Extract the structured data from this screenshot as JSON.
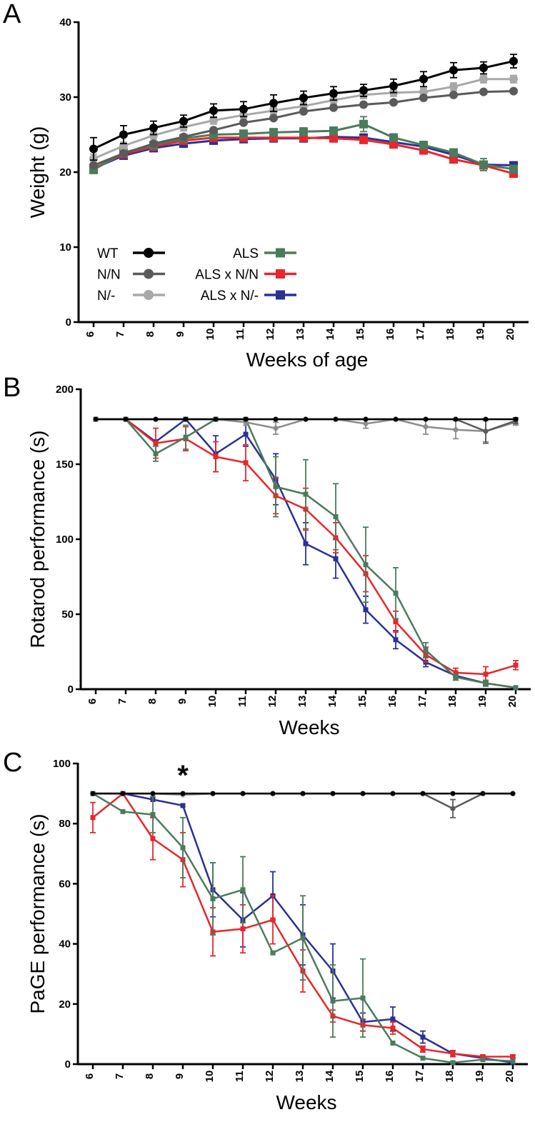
{
  "chart_data": [
    {
      "type": "line",
      "panel": "A",
      "ylabel": "Weight (g)",
      "xlabel": "Weeks of age",
      "x": [
        6,
        7,
        8,
        9,
        10,
        11,
        12,
        13,
        14,
        15,
        16,
        17,
        18,
        19,
        20
      ],
      "xlim": [
        5.5,
        20.5
      ],
      "ylim": [
        0,
        40
      ],
      "yticks": [
        0,
        10,
        20,
        30,
        40
      ],
      "legend": "lower left",
      "series": [
        {
          "name": "WT",
          "color": "#000000",
          "marker": "circle",
          "values": [
            23.1,
            25.0,
            25.9,
            26.8,
            28.2,
            28.4,
            29.2,
            29.9,
            30.5,
            30.9,
            31.5,
            32.4,
            33.6,
            33.9,
            34.8
          ],
          "errors": [
            1.5,
            1.2,
            0.9,
            0.8,
            0.9,
            1.0,
            1.1,
            0.9,
            0.9,
            0.8,
            0.9,
            1.0,
            1.0,
            0.8,
            0.9
          ]
        },
        {
          "name": "N/N",
          "color": "#5a5a5a",
          "marker": "circle",
          "values": [
            20.9,
            22.5,
            23.8,
            24.7,
            25.6,
            26.6,
            27.2,
            28.1,
            28.6,
            29.0,
            29.3,
            29.9,
            30.3,
            30.7,
            30.8
          ]
        },
        {
          "name": "N/-",
          "color": "#a8a8a8",
          "marker": "circle",
          "values": [
            21.8,
            23.5,
            24.9,
            26.0,
            26.9,
            27.6,
            28.2,
            28.8,
            29.6,
            30.3,
            30.6,
            30.7,
            31.4,
            32.4,
            32.4
          ],
          "errors": [
            0.6,
            0.5,
            0.5,
            0.5,
            0.5,
            0.5,
            0.5,
            0.5,
            0.5,
            0.5,
            0.5,
            0.5,
            0.5,
            0.5,
            0.5
          ]
        },
        {
          "name": "ALS",
          "color": "#4b7b5c",
          "marker": "square",
          "values": [
            20.3,
            22.6,
            23.6,
            24.5,
            25.0,
            25.1,
            25.3,
            25.4,
            25.5,
            26.4,
            24.6,
            23.6,
            22.6,
            21.0,
            20.4
          ],
          "errors": [
            0.4,
            0.4,
            0.4,
            0.4,
            0.5,
            0.5,
            0.5,
            0.5,
            0.5,
            1.0,
            0.5,
            0.5,
            0.5,
            0.8,
            0.5
          ]
        },
        {
          "name": "ALS x N/N",
          "color": "#e8262b",
          "marker": "square",
          "values": [
            20.5,
            22.4,
            23.4,
            24.2,
            24.6,
            24.6,
            24.6,
            24.6,
            24.5,
            24.3,
            23.7,
            22.9,
            21.7,
            20.9,
            19.8
          ]
        },
        {
          "name": "ALS x N/-",
          "color": "#2b3192",
          "marker": "square",
          "values": [
            20.5,
            22.2,
            23.2,
            23.8,
            24.2,
            24.4,
            24.5,
            24.5,
            24.7,
            24.6,
            24.0,
            23.4,
            22.3,
            21.0,
            20.9
          ]
        }
      ]
    },
    {
      "type": "line",
      "panel": "B",
      "ylabel": "Rotarod performance (s)",
      "xlabel": "Weeks",
      "x": [
        6,
        7,
        8,
        9,
        10,
        11,
        12,
        13,
        14,
        15,
        16,
        17,
        18,
        19,
        20
      ],
      "xlim": [
        5.5,
        20.5
      ],
      "ylim": [
        0,
        200
      ],
      "yticks": [
        0,
        50,
        100,
        150,
        200
      ],
      "series": [
        {
          "color": "#000000",
          "marker": "circle",
          "values": [
            180,
            180,
            180,
            180,
            180,
            180,
            180,
            180,
            180,
            180,
            180,
            180,
            180,
            180,
            180
          ]
        },
        {
          "color": "#5a5a5a",
          "marker": "circle",
          "values": [
            180,
            180,
            180,
            180,
            180,
            180,
            180,
            180,
            180,
            180,
            180,
            180,
            180,
            172,
            179
          ],
          "errors": [
            0,
            0,
            0,
            0,
            0,
            0,
            0,
            0,
            0,
            0,
            0,
            0,
            0,
            8,
            2
          ]
        },
        {
          "color": "#8c8c8c",
          "marker": "circle",
          "values": [
            180,
            180,
            180,
            180,
            180,
            178,
            174,
            180,
            180,
            177,
            180,
            175,
            173,
            172,
            178
          ],
          "errors": [
            0,
            0,
            0,
            0,
            0,
            2,
            4,
            0,
            0,
            3,
            0,
            5,
            6,
            7,
            2
          ]
        },
        {
          "color": "#4b7b5c",
          "marker": "square",
          "values": [
            180,
            180,
            157,
            168,
            180,
            180,
            135,
            130,
            115,
            83,
            64,
            26,
            8,
            4,
            1
          ],
          "errors": [
            0,
            0,
            5,
            8,
            0,
            0,
            20,
            23,
            22,
            25,
            17,
            5,
            2,
            2,
            0
          ]
        },
        {
          "color": "#e8262b",
          "marker": "square",
          "values": [
            180,
            180,
            164,
            167,
            155,
            151,
            129,
            120,
            101,
            77,
            45,
            23,
            11,
            10,
            16
          ],
          "errors": [
            0,
            0,
            10,
            8,
            10,
            12,
            12,
            14,
            10,
            12,
            7,
            5,
            3,
            5,
            3
          ]
        },
        {
          "color": "#2b3192",
          "marker": "square",
          "values": [
            180,
            180,
            165,
            180,
            157,
            170,
            140,
            97,
            87,
            53,
            33,
            18,
            9,
            4,
            1
          ],
          "errors": [
            0,
            0,
            0,
            0,
            12,
            8,
            17,
            14,
            13,
            9,
            6,
            3,
            1,
            1,
            0
          ]
        }
      ]
    },
    {
      "type": "line",
      "panel": "C",
      "ylabel": "PaGE performance (s)",
      "xlabel": "Weeks",
      "x": [
        6,
        7,
        8,
        9,
        10,
        11,
        12,
        13,
        14,
        15,
        16,
        17,
        18,
        19,
        20
      ],
      "xlim": [
        5.5,
        20.5
      ],
      "ylim": [
        0,
        100
      ],
      "yticks": [
        0,
        20,
        40,
        60,
        80,
        100
      ],
      "annotations": [
        {
          "text": "*",
          "x": 9
        }
      ],
      "series": [
        {
          "color": "#000000",
          "marker": "circle",
          "values": [
            90,
            90,
            90,
            90,
            90,
            90,
            90,
            90,
            90,
            90,
            90,
            90,
            90,
            90,
            90
          ]
        },
        {
          "color": "#5a5a5a",
          "marker": "circle",
          "values": [
            90,
            90,
            90,
            90,
            90,
            90,
            90,
            90,
            90,
            90,
            90,
            90,
            85,
            90,
            90
          ],
          "errors": [
            0,
            0,
            0,
            0,
            0,
            0,
            0,
            0,
            0,
            0,
            0,
            0,
            3,
            0,
            0
          ]
        },
        {
          "color": "#a8a8a8",
          "marker": "circle",
          "values": [
            90,
            90,
            90,
            89.5,
            90,
            90,
            90,
            90,
            90,
            90,
            90,
            90,
            90,
            90,
            90
          ]
        },
        {
          "color": "#4b7b5c",
          "marker": "square",
          "values": [
            90,
            84,
            83,
            72,
            55,
            58,
            37,
            42,
            21,
            22,
            7,
            2,
            0.5,
            1.5,
            1
          ],
          "errors": [
            0,
            0,
            6,
            10,
            12,
            11,
            0,
            14,
            12,
            13,
            0,
            0,
            0,
            0,
            0
          ]
        },
        {
          "color": "#e8262b",
          "marker": "square",
          "values": [
            82,
            90,
            75,
            68,
            44,
            45,
            48,
            31,
            16,
            13,
            12,
            5,
            3.5,
            2.5,
            2.5
          ],
          "errors": [
            5,
            0,
            7,
            9,
            8,
            8,
            8,
            7,
            2,
            2,
            2,
            1,
            1,
            0.5,
            0.5
          ]
        },
        {
          "color": "#2b3192",
          "marker": "square",
          "values": [
            90,
            90,
            88,
            86,
            58,
            48,
            56,
            43,
            31,
            14,
            15,
            9,
            3.5,
            2,
            0.5
          ],
          "errors": [
            0,
            0,
            0,
            0,
            9,
            9,
            8,
            10,
            9,
            3,
            4,
            2,
            1,
            0,
            0
          ]
        }
      ]
    }
  ]
}
